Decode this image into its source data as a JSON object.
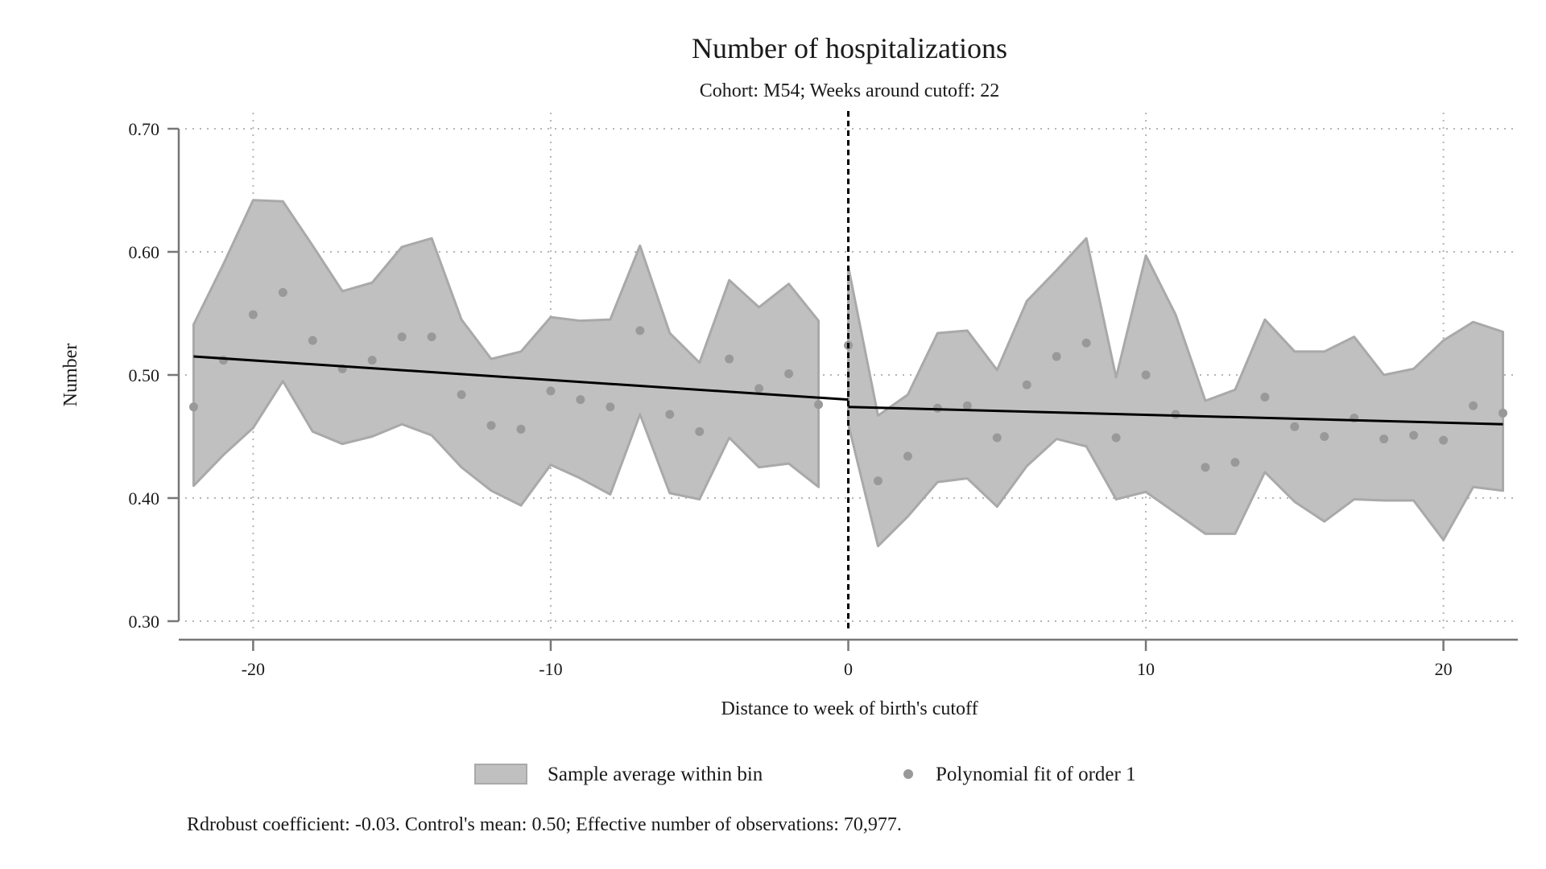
{
  "chart_data": {
    "type": "scatter",
    "title": "Number of hospitalizations",
    "subtitle": "Cohort: M54; Weeks around cutoff: 22",
    "xlabel": "Distance to week of birth's cutoff",
    "ylabel": "Number",
    "xlim": [
      -22.5,
      22.5
    ],
    "ylim": [
      0.3,
      0.7
    ],
    "x_ticks": [
      -20,
      -10,
      0,
      10,
      20
    ],
    "x_tick_labels": [
      "-20",
      "-10",
      "0",
      "10",
      "20"
    ],
    "y_ticks": [
      0.3,
      0.4,
      0.5,
      0.6,
      0.7
    ],
    "y_tick_labels": [
      "0.30",
      "0.40",
      "0.50",
      "0.60",
      "0.70"
    ],
    "grid": true,
    "cutoff_x": 0,
    "legend_position": "bottom",
    "legend": [
      {
        "label": "Sample average within bin",
        "marker": "area"
      },
      {
        "label": "Polynomial fit of order 1",
        "marker": "dot"
      }
    ],
    "note": "Rdrobust coefficient: -0.03. Control's mean: 0.50; Effective number of observations: 70,977.",
    "colors": {
      "band_fill": "#c0c0c0",
      "band_edge": "#a9a9a9",
      "points": "#999999",
      "fit_line": "#000000",
      "cutoff_line": "#000000",
      "axis": "#777777",
      "grid": "#b5b5b5"
    },
    "series": [
      {
        "name": "Polynomial fit of order 1",
        "type": "scatter",
        "x": [
          -22,
          -21,
          -20,
          -19,
          -18,
          -17,
          -16,
          -15,
          -14,
          -13,
          -12,
          -11,
          -10,
          -9,
          -8,
          -7,
          -6,
          -5,
          -4,
          -3,
          -2,
          -1,
          0,
          1,
          2,
          3,
          4,
          5,
          6,
          7,
          8,
          9,
          10,
          11,
          12,
          13,
          14,
          15,
          16,
          17,
          18,
          19,
          20,
          21,
          22
        ],
        "y": [
          0.474,
          0.512,
          0.549,
          0.567,
          0.528,
          0.505,
          0.512,
          0.531,
          0.531,
          0.484,
          0.459,
          0.456,
          0.487,
          0.48,
          0.474,
          0.536,
          0.468,
          0.454,
          0.513,
          0.489,
          0.501,
          0.476,
          0.524,
          0.414,
          0.434,
          0.473,
          0.475,
          0.449,
          0.492,
          0.515,
          0.526,
          0.449,
          0.5,
          0.468,
          0.425,
          0.429,
          0.482,
          0.458,
          0.45,
          0.465,
          0.448,
          0.451,
          0.447,
          0.475,
          0.469
        ]
      },
      {
        "name": "Sample average within bin",
        "type": "area",
        "segments": [
          {
            "x": [
              -22,
              -21,
              -20,
              -19,
              -18,
              -17,
              -16,
              -15,
              -14,
              -13,
              -12,
              -11,
              -10,
              -9,
              -8,
              -7,
              -6,
              -5,
              -4,
              -3,
              -2,
              -1
            ],
            "lower": [
              0.41,
              0.435,
              0.457,
              0.495,
              0.454,
              0.444,
              0.45,
              0.46,
              0.451,
              0.425,
              0.406,
              0.394,
              0.427,
              0.416,
              0.403,
              0.468,
              0.404,
              0.399,
              0.449,
              0.425,
              0.428,
              0.409
            ],
            "upper": [
              0.541,
              0.59,
              0.642,
              0.641,
              0.605,
              0.568,
              0.575,
              0.604,
              0.611,
              0.545,
              0.513,
              0.519,
              0.547,
              0.544,
              0.545,
              0.605,
              0.534,
              0.51,
              0.577,
              0.555,
              0.574,
              0.544
            ]
          },
          {
            "x": [
              0,
              1,
              2,
              3,
              4,
              5,
              6,
              7,
              8,
              9,
              10,
              11,
              12,
              13,
              14,
              15,
              16,
              17,
              18,
              19,
              20,
              21,
              22
            ],
            "lower": [
              0.46,
              0.361,
              0.385,
              0.413,
              0.416,
              0.393,
              0.426,
              0.448,
              0.442,
              0.399,
              0.405,
              0.388,
              0.371,
              0.371,
              0.421,
              0.397,
              0.381,
              0.399,
              0.398,
              0.398,
              0.366,
              0.409,
              0.406
            ],
            "upper": [
              0.588,
              0.467,
              0.484,
              0.534,
              0.536,
              0.504,
              0.56,
              0.585,
              0.611,
              0.498,
              0.597,
              0.549,
              0.479,
              0.488,
              0.545,
              0.519,
              0.519,
              0.531,
              0.5,
              0.505,
              0.528,
              0.543,
              0.535
            ]
          }
        ]
      },
      {
        "name": "fit_lines",
        "type": "line",
        "segments": [
          {
            "x": [
              -22,
              0
            ],
            "y": [
              0.515,
              0.48
            ]
          },
          {
            "x": [
              0,
              22
            ],
            "y": [
              0.474,
              0.46
            ]
          }
        ]
      }
    ]
  }
}
